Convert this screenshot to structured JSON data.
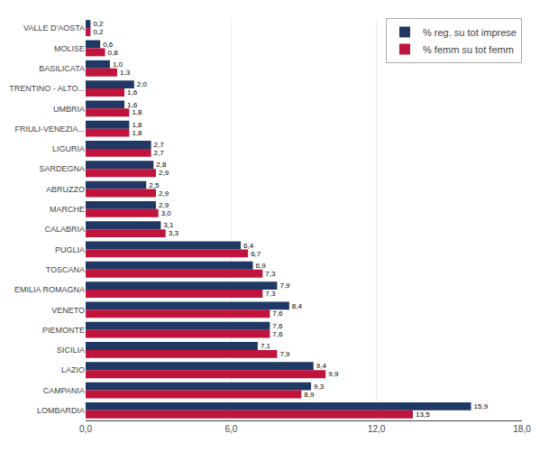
{
  "chart_data": {
    "type": "bar",
    "orientation": "horizontal",
    "categories": [
      "VALLE D'AOSTA",
      "MOLISE",
      "BASILICATA",
      "TRENTINO - ALTO...",
      "UMBRIA",
      "FRIULI-VENEZIA...",
      "LIGURIA",
      "SARDEGNA",
      "ABRUZZO",
      "MARCHE",
      "CALABRIA",
      "PUGLIA",
      "TOSCANA",
      "EMILIA ROMAGNA",
      "VENETO",
      "PIEMONTE",
      "SICILIA",
      "LAZIO",
      "CAMPANIA",
      "LOMBARDIA"
    ],
    "series": [
      {
        "name": "% reg. su tot imprese",
        "color": "#1F3864",
        "values": [
          0.2,
          0.6,
          1.0,
          2.0,
          1.6,
          1.8,
          2.7,
          2.8,
          2.5,
          2.9,
          3.1,
          6.4,
          6.9,
          7.9,
          8.4,
          7.6,
          7.1,
          9.4,
          9.3,
          15.9
        ],
        "value_labels": [
          "0,2",
          "0,6",
          "1,0",
          "2,0",
          "1,6",
          "1,8",
          "2,7",
          "2,8",
          "2,5",
          "2,9",
          "3,1",
          "6,4",
          "6,9",
          "7,9",
          "8,4",
          "7,6",
          "7,1",
          "9,4",
          "9,3",
          "15,9"
        ]
      },
      {
        "name": "% femm su tot femm",
        "color": "#C0143C",
        "values": [
          0.2,
          0.8,
          1.3,
          1.6,
          1.8,
          1.8,
          2.7,
          2.9,
          2.9,
          3.0,
          3.3,
          6.7,
          7.3,
          7.3,
          7.6,
          7.6,
          7.9,
          9.9,
          8.9,
          13.5
        ],
        "value_labels": [
          "0,2",
          "0,8",
          "1,3",
          "1,6",
          "1,8",
          "1,8",
          "2,7",
          "2,9",
          "2,9",
          "3,0",
          "3,3",
          "6,7",
          "7,3",
          "7,3",
          "7,6",
          "7,6",
          "7,9",
          "9,9",
          "8,9",
          "13,5"
        ]
      }
    ],
    "xlim": [
      0,
      18.0
    ],
    "xticks": [
      {
        "value": 0.0,
        "label": "0,0"
      },
      {
        "value": 6.0,
        "label": "6,0"
      },
      {
        "value": 12.0,
        "label": "12,0"
      },
      {
        "value": 18.0,
        "label": "18,0"
      }
    ],
    "grid": true,
    "legend": "upper right",
    "data_labels": true
  }
}
